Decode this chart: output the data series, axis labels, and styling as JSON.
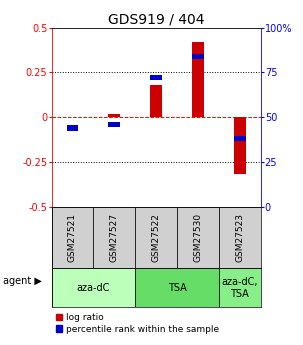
{
  "title": "GDS919 / 404",
  "samples": [
    "GSM27521",
    "GSM27527",
    "GSM27522",
    "GSM27530",
    "GSM27523"
  ],
  "log_ratios": [
    0.0,
    0.02,
    0.18,
    0.42,
    -0.32
  ],
  "percentile_ranks": [
    44,
    46,
    72,
    84,
    38
  ],
  "ylim_left": [
    -0.5,
    0.5
  ],
  "ylim_right": [
    0,
    100
  ],
  "yticks_left": [
    -0.5,
    -0.25,
    0.0,
    0.25,
    0.5
  ],
  "ytick_labels_left": [
    "-0.5",
    "-0.25",
    "0",
    "0.25",
    "0.5"
  ],
  "yticks_right": [
    0,
    25,
    50,
    75,
    100
  ],
  "ytick_labels_right": [
    "0",
    "25",
    "50",
    "75",
    "100%"
  ],
  "hlines_dotted": [
    -0.25,
    0.25
  ],
  "hline_dashed": 0.0,
  "bar_color_log": "#cc0000",
  "bar_color_pct": "#0000cc",
  "background_color": "#ffffff",
  "sample_box_color": "#d0d0d0",
  "agent_groups": [
    {
      "cols": [
        0,
        1
      ],
      "label": "aza-dC",
      "color": "#bbffbb"
    },
    {
      "cols": [
        2,
        3
      ],
      "label": "TSA",
      "color": "#66dd66"
    },
    {
      "cols": [
        4,
        4
      ],
      "label": "aza-dC,\nTSA",
      "color": "#88ee88"
    }
  ],
  "title_fontsize": 10,
  "tick_fontsize": 7,
  "legend_fontsize": 6.5,
  "sample_fontsize": 6.5,
  "agent_fontsize": 7
}
